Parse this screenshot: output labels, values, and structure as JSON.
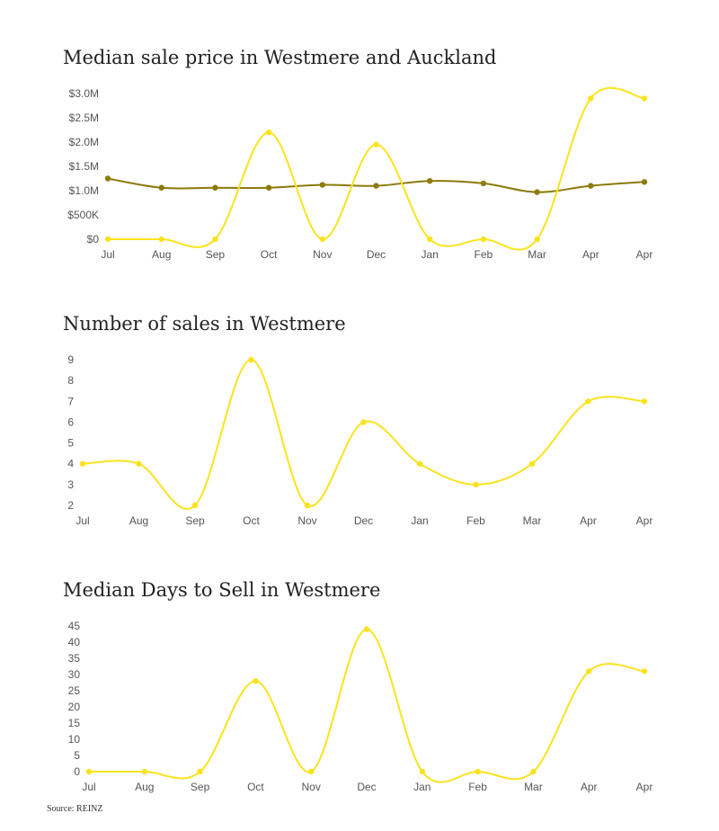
{
  "colors": {
    "westmere": "#FAE31E",
    "auckland": "#8C7A0A"
  },
  "chart_data": [
    {
      "type": "line",
      "title": "Median sale price in Westmere and Auckland",
      "categories": [
        "Jul",
        "Aug",
        "Sep",
        "Oct",
        "Nov",
        "Dec",
        "Jan",
        "Feb",
        "Mar",
        "Apr",
        "Apr"
      ],
      "ylim": [
        0,
        3000000
      ],
      "yticks": [
        0,
        500000,
        1000000,
        1500000,
        2000000,
        2500000,
        3000000
      ],
      "ytick_labels": [
        "$0",
        "$500K",
        "$1.0M",
        "$1.5M",
        "$2.0M",
        "$2.5M",
        "$3.0M"
      ],
      "series": [
        {
          "name": "Westmere",
          "color": "#FAE31E",
          "values": [
            0,
            0,
            0,
            2200000,
            0,
            1950000,
            0,
            0,
            0,
            2900000,
            2900000
          ]
        },
        {
          "name": "Auckland",
          "color": "#8C7A0A",
          "values": [
            1250000,
            1060000,
            1060000,
            1060000,
            1120000,
            1100000,
            1200000,
            1150000,
            970000,
            1100000,
            1180000
          ]
        }
      ]
    },
    {
      "type": "line",
      "title": "Number of sales in Westmere",
      "categories": [
        "Jul",
        "Aug",
        "Sep",
        "Oct",
        "Nov",
        "Dec",
        "Jan",
        "Feb",
        "Mar",
        "Apr",
        "Apr"
      ],
      "ylim": [
        2,
        9
      ],
      "yticks": [
        2,
        3,
        4,
        5,
        6,
        7,
        8,
        9
      ],
      "ytick_labels": [
        "2",
        "3",
        "4",
        "5",
        "6",
        "7",
        "8",
        "9"
      ],
      "series": [
        {
          "name": "Westmere",
          "color": "#FAE31E",
          "values": [
            4,
            4,
            2,
            9,
            2,
            6,
            4,
            3,
            4,
            7,
            7
          ]
        }
      ]
    },
    {
      "type": "line",
      "title": "Median Days to Sell in Westmere",
      "categories": [
        "Jul",
        "Aug",
        "Sep",
        "Oct",
        "Nov",
        "Dec",
        "Jan",
        "Feb",
        "Mar",
        "Apr",
        "Apr"
      ],
      "ylim": [
        0,
        45
      ],
      "yticks": [
        0,
        5,
        10,
        15,
        20,
        25,
        30,
        35,
        40,
        45
      ],
      "ytick_labels": [
        "0",
        "5",
        "10",
        "15",
        "20",
        "25",
        "30",
        "35",
        "40",
        "45"
      ],
      "series": [
        {
          "name": "Westmere",
          "color": "#FAE31E",
          "values": [
            0,
            0,
            0,
            28,
            0,
            44,
            0,
            0,
            0,
            31,
            31
          ]
        }
      ]
    }
  ],
  "source": "Source: REINZ"
}
